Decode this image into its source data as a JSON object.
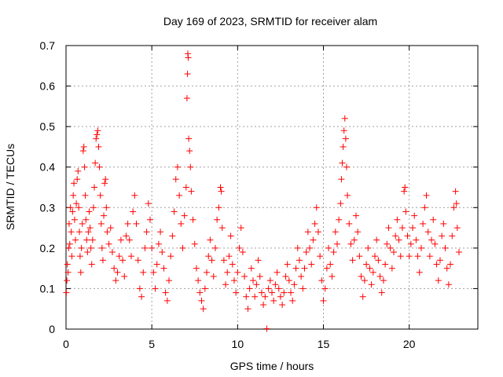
{
  "chart_data": {
    "type": "scatter",
    "title": "Day 169 of 2023, SRMTID for receiver alam",
    "xlabel": "GPS time / hours",
    "ylabel": "SRMTID / TECUs",
    "xlim": [
      0,
      24
    ],
    "ylim": [
      0,
      0.7
    ],
    "xticks": [
      0,
      5,
      10,
      15,
      20
    ],
    "xtick_labels": [
      "0",
      "5",
      "10",
      "15",
      "20"
    ],
    "yticks": [
      0,
      0.1,
      0.2,
      0.3,
      0.4,
      0.5,
      0.6,
      0.7
    ],
    "ytick_labels": [
      "0",
      "0.1",
      "0.2",
      "0.3",
      "0.4",
      "0.5",
      "0.6",
      "0.7"
    ],
    "grid": true,
    "marker": "+",
    "color": "#ff0000",
    "series": [
      {
        "name": "SRMTID",
        "points": [
          [
            0.02,
            0.09
          ],
          [
            0.05,
            0.12
          ],
          [
            0.08,
            0.16
          ],
          [
            0.12,
            0.14
          ],
          [
            0.15,
            0.2
          ],
          [
            0.18,
            0.26
          ],
          [
            0.22,
            0.21
          ],
          [
            0.26,
            0.3
          ],
          [
            0.3,
            0.24
          ],
          [
            0.34,
            0.18
          ],
          [
            0.38,
            0.29
          ],
          [
            0.42,
            0.33
          ],
          [
            0.46,
            0.36
          ],
          [
            0.5,
            0.27
          ],
          [
            0.55,
            0.22
          ],
          [
            0.6,
            0.31
          ],
          [
            0.65,
            0.37
          ],
          [
            0.7,
            0.39
          ],
          [
            0.74,
            0.3
          ],
          [
            0.78,
            0.24
          ],
          [
            0.82,
            0.18
          ],
          [
            0.86,
            0.14
          ],
          [
            0.9,
            0.2
          ],
          [
            0.95,
            0.26
          ],
          [
            1.0,
            0.44
          ],
          [
            1.04,
            0.45
          ],
          [
            1.08,
            0.4
          ],
          [
            1.12,
            0.33
          ],
          [
            1.16,
            0.27
          ],
          [
            1.2,
            0.22
          ],
          [
            1.25,
            0.19
          ],
          [
            1.3,
            0.24
          ],
          [
            1.35,
            0.29
          ],
          [
            1.4,
            0.25
          ],
          [
            1.45,
            0.2
          ],
          [
            1.5,
            0.16
          ],
          [
            1.55,
            0.22
          ],
          [
            1.6,
            0.3
          ],
          [
            1.65,
            0.35
          ],
          [
            1.7,
            0.41
          ],
          [
            1.75,
            0.47
          ],
          [
            1.8,
            0.48
          ],
          [
            1.85,
            0.49
          ],
          [
            1.9,
            0.45
          ],
          [
            1.95,
            0.4
          ],
          [
            2.0,
            0.33
          ],
          [
            2.05,
            0.26
          ],
          [
            2.1,
            0.2
          ],
          [
            2.15,
            0.17
          ],
          [
            2.2,
            0.28
          ],
          [
            2.25,
            0.36
          ],
          [
            2.3,
            0.37
          ],
          [
            2.35,
            0.3
          ],
          [
            2.4,
            0.24
          ],
          [
            2.5,
            0.21
          ],
          [
            2.6,
            0.25
          ],
          [
            2.7,
            0.19
          ],
          [
            2.8,
            0.15
          ],
          [
            2.9,
            0.12
          ],
          [
            3.0,
            0.14
          ],
          [
            3.1,
            0.18
          ],
          [
            3.2,
            0.22
          ],
          [
            3.3,
            0.17
          ],
          [
            3.4,
            0.13
          ],
          [
            3.5,
            0.23
          ],
          [
            3.6,
            0.26
          ],
          [
            3.7,
            0.22
          ],
          [
            3.8,
            0.18
          ],
          [
            3.9,
            0.29
          ],
          [
            4.0,
            0.33
          ],
          [
            4.1,
            0.26
          ],
          [
            4.2,
            0.17
          ],
          [
            4.3,
            0.1
          ],
          [
            4.4,
            0.08
          ],
          [
            4.5,
            0.14
          ],
          [
            4.6,
            0.2
          ],
          [
            4.7,
            0.24
          ],
          [
            4.8,
            0.31
          ],
          [
            4.9,
            0.27
          ],
          [
            5.0,
            0.2
          ],
          [
            5.1,
            0.14
          ],
          [
            5.2,
            0.1
          ],
          [
            5.3,
            0.16
          ],
          [
            5.4,
            0.21
          ],
          [
            5.5,
            0.24
          ],
          [
            5.6,
            0.19
          ],
          [
            5.7,
            0.15
          ],
          [
            5.8,
            0.09
          ],
          [
            5.9,
            0.07
          ],
          [
            6.0,
            0.12
          ],
          [
            6.1,
            0.18
          ],
          [
            6.2,
            0.23
          ],
          [
            6.3,
            0.29
          ],
          [
            6.4,
            0.37
          ],
          [
            6.5,
            0.4
          ],
          [
            6.6,
            0.33
          ],
          [
            6.7,
            0.26
          ],
          [
            6.8,
            0.2
          ],
          [
            6.9,
            0.28
          ],
          [
            7.0,
            0.35
          ],
          [
            7.05,
            0.57
          ],
          [
            7.08,
            0.63
          ],
          [
            7.1,
            0.68
          ],
          [
            7.12,
            0.67
          ],
          [
            7.15,
            0.47
          ],
          [
            7.2,
            0.44
          ],
          [
            7.25,
            0.4
          ],
          [
            7.3,
            0.34
          ],
          [
            7.4,
            0.27
          ],
          [
            7.5,
            0.21
          ],
          [
            7.6,
            0.15
          ],
          [
            7.7,
            0.12
          ],
          [
            7.8,
            0.09
          ],
          [
            7.9,
            0.07
          ],
          [
            8.0,
            0.05
          ],
          [
            8.1,
            0.1
          ],
          [
            8.2,
            0.14
          ],
          [
            8.3,
            0.18
          ],
          [
            8.4,
            0.22
          ],
          [
            8.5,
            0.17
          ],
          [
            8.6,
            0.13
          ],
          [
            8.7,
            0.2
          ],
          [
            8.8,
            0.27
          ],
          [
            8.9,
            0.3
          ],
          [
            9.0,
            0.35
          ],
          [
            9.05,
            0.34
          ],
          [
            9.1,
            0.25
          ],
          [
            9.2,
            0.17
          ],
          [
            9.3,
            0.11
          ],
          [
            9.4,
            0.14
          ],
          [
            9.5,
            0.18
          ],
          [
            9.6,
            0.23
          ],
          [
            9.7,
            0.16
          ],
          [
            9.8,
            0.12
          ],
          [
            9.9,
            0.09
          ],
          [
            10.0,
            0.14
          ],
          [
            10.1,
            0.2
          ],
          [
            10.2,
            0.25
          ],
          [
            10.3,
            0.19
          ],
          [
            10.4,
            0.13
          ],
          [
            10.5,
            0.08
          ],
          [
            10.6,
            0.05
          ],
          [
            10.7,
            0.1
          ],
          [
            10.8,
            0.15
          ],
          [
            10.9,
            0.12
          ],
          [
            11.0,
            0.08
          ],
          [
            11.1,
            0.11
          ],
          [
            11.2,
            0.17
          ],
          [
            11.3,
            0.13
          ],
          [
            11.4,
            0.09
          ],
          [
            11.5,
            0.06
          ],
          [
            11.6,
            0.08
          ],
          [
            11.7,
            0.001
          ],
          [
            11.8,
            0.1
          ],
          [
            11.9,
            0.12
          ],
          [
            12.0,
            0.09
          ],
          [
            12.1,
            0.07
          ],
          [
            12.2,
            0.11
          ],
          [
            12.3,
            0.14
          ],
          [
            12.4,
            0.1
          ],
          [
            12.5,
            0.08
          ],
          [
            12.6,
            0.06
          ],
          [
            12.7,
            0.09
          ],
          [
            12.8,
            0.13
          ],
          [
            12.9,
            0.16
          ],
          [
            13.0,
            0.12
          ],
          [
            13.1,
            0.09
          ],
          [
            13.2,
            0.07
          ],
          [
            13.3,
            0.11
          ],
          [
            13.4,
            0.15
          ],
          [
            13.5,
            0.2
          ],
          [
            13.6,
            0.17
          ],
          [
            13.7,
            0.13
          ],
          [
            13.8,
            0.1
          ],
          [
            13.9,
            0.15
          ],
          [
            14.0,
            0.19
          ],
          [
            14.1,
            0.24
          ],
          [
            14.2,
            0.2
          ],
          [
            14.3,
            0.16
          ],
          [
            14.4,
            0.22
          ],
          [
            14.5,
            0.26
          ],
          [
            14.6,
            0.3
          ],
          [
            14.7,
            0.24
          ],
          [
            14.8,
            0.18
          ],
          [
            14.9,
            0.12
          ],
          [
            15.0,
            0.07
          ],
          [
            15.1,
            0.1
          ],
          [
            15.2,
            0.15
          ],
          [
            15.3,
            0.2
          ],
          [
            15.4,
            0.16
          ],
          [
            15.5,
            0.13
          ],
          [
            15.6,
            0.19
          ],
          [
            15.7,
            0.24
          ],
          [
            15.8,
            0.21
          ],
          [
            15.9,
            0.27
          ],
          [
            16.0,
            0.31
          ],
          [
            16.05,
            0.37
          ],
          [
            16.1,
            0.41
          ],
          [
            16.15,
            0.45
          ],
          [
            16.2,
            0.49
          ],
          [
            16.25,
            0.52
          ],
          [
            16.3,
            0.47
          ],
          [
            16.35,
            0.4
          ],
          [
            16.4,
            0.33
          ],
          [
            16.5,
            0.26
          ],
          [
            16.6,
            0.21
          ],
          [
            16.7,
            0.17
          ],
          [
            16.8,
            0.22
          ],
          [
            16.9,
            0.28
          ],
          [
            17.0,
            0.24
          ],
          [
            17.1,
            0.18
          ],
          [
            17.2,
            0.13
          ],
          [
            17.3,
            0.08
          ],
          [
            17.4,
            0.12
          ],
          [
            17.5,
            0.16
          ],
          [
            17.6,
            0.2
          ],
          [
            17.7,
            0.15
          ],
          [
            17.8,
            0.11
          ],
          [
            17.9,
            0.14
          ],
          [
            18.0,
            0.18
          ],
          [
            18.1,
            0.22
          ],
          [
            18.2,
            0.17
          ],
          [
            18.3,
            0.13
          ],
          [
            18.4,
            0.09
          ],
          [
            18.5,
            0.12
          ],
          [
            18.6,
            0.16
          ],
          [
            18.7,
            0.21
          ],
          [
            18.8,
            0.25
          ],
          [
            18.9,
            0.2
          ],
          [
            19.0,
            0.15
          ],
          [
            19.1,
            0.19
          ],
          [
            19.2,
            0.23
          ],
          [
            19.3,
            0.27
          ],
          [
            19.4,
            0.22
          ],
          [
            19.5,
            0.18
          ],
          [
            19.6,
            0.25
          ],
          [
            19.7,
            0.34
          ],
          [
            19.75,
            0.35
          ],
          [
            19.8,
            0.29
          ],
          [
            19.9,
            0.23
          ],
          [
            20.0,
            0.18
          ],
          [
            20.1,
            0.21
          ],
          [
            20.2,
            0.25
          ],
          [
            20.3,
            0.28
          ],
          [
            20.4,
            0.22
          ],
          [
            20.5,
            0.18
          ],
          [
            20.6,
            0.14
          ],
          [
            20.7,
            0.2
          ],
          [
            20.8,
            0.26
          ],
          [
            20.9,
            0.3
          ],
          [
            21.0,
            0.33
          ],
          [
            21.1,
            0.24
          ],
          [
            21.2,
            0.18
          ],
          [
            21.3,
            0.22
          ],
          [
            21.4,
            0.27
          ],
          [
            21.5,
            0.21
          ],
          [
            21.6,
            0.16
          ],
          [
            21.7,
            0.12
          ],
          [
            21.8,
            0.17
          ],
          [
            21.9,
            0.23
          ],
          [
            22.0,
            0.26
          ],
          [
            22.1,
            0.2
          ],
          [
            22.2,
            0.15
          ],
          [
            22.3,
            0.11
          ],
          [
            22.4,
            0.16
          ],
          [
            22.5,
            0.23
          ],
          [
            22.6,
            0.3
          ],
          [
            22.7,
            0.34
          ],
          [
            22.75,
            0.31
          ],
          [
            22.8,
            0.25
          ],
          [
            22.9,
            0.19
          ]
        ]
      }
    ]
  }
}
